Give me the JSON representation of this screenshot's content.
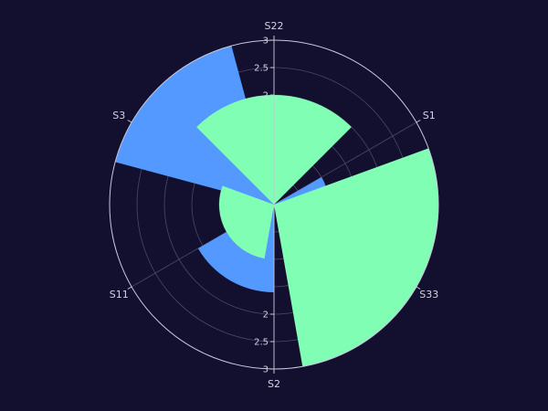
{
  "chart_data": {
    "type": "barpolar",
    "categories": [
      "S22",
      "S1",
      "S33",
      "S2",
      "S11",
      "S3"
    ],
    "category_angles_deg": [
      0,
      60,
      120,
      180,
      240,
      300
    ],
    "radial_range": [
      0,
      3
    ],
    "radial_tick_labels": [
      "2",
      "2.5",
      "3"
    ],
    "radial_tick_values": [
      2,
      2.5,
      3
    ],
    "series": [
      {
        "color": "#5399ff",
        "bars": [
          {
            "start_deg": 60,
            "end_deg": 120,
            "r": 1
          },
          {
            "start_deg": 180,
            "end_deg": 240,
            "r": 1.6
          },
          {
            "start_deg": 285,
            "end_deg": 345,
            "r": 3
          }
        ]
      },
      {
        "color": "#80ffb4",
        "bars": [
          {
            "start_deg": -45,
            "end_deg": 45,
            "r": 2
          },
          {
            "start_deg": 70,
            "end_deg": 170,
            "r": 3
          },
          {
            "start_deg": 190,
            "end_deg": 290,
            "r": 1
          }
        ]
      }
    ],
    "grid": true,
    "legend": "none"
  }
}
